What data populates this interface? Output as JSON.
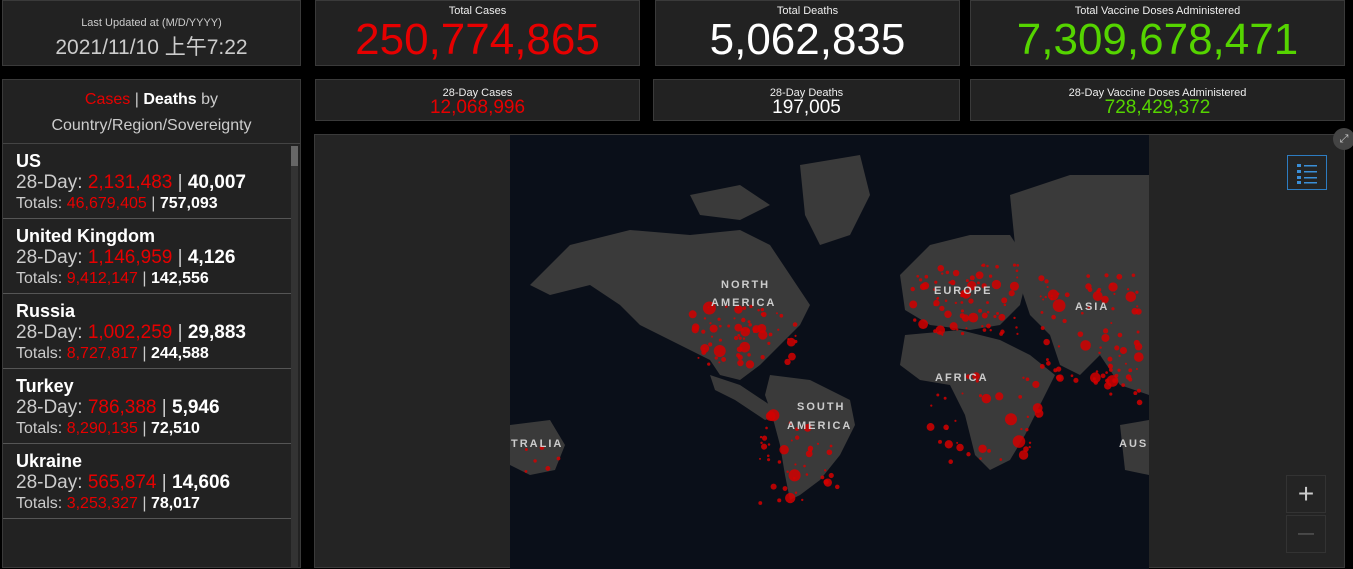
{
  "updated": {
    "label": "Last Updated at (M/D/YYYY)",
    "value": "2021/11/10 上午7:22"
  },
  "totals": [
    {
      "label": "Total Cases",
      "value": "250,774,865"
    },
    {
      "label": "Total Deaths",
      "value": "5,062,835"
    },
    {
      "label": "Total Vaccine Doses Administered",
      "value": "7,309,678,471"
    }
  ],
  "day28": [
    {
      "label": "28-Day Cases",
      "value": "12,068,996"
    },
    {
      "label": "28-Day Deaths",
      "value": "197,005"
    },
    {
      "label": "28-Day Vaccine Doses Administered",
      "value": "728,429,372"
    }
  ],
  "list": {
    "title_cases": "Cases",
    "sep": "|",
    "title_deaths": "Deaths",
    "title_by": "by",
    "subtitle": "Country/Region/Sovereignty",
    "day_label": "28-Day:",
    "totals_label": "Totals:",
    "items": [
      {
        "name": "US",
        "c28": "2,131,483",
        "d28": "40,007",
        "ct": "46,679,405",
        "dt": "757,093"
      },
      {
        "name": "United Kingdom",
        "c28": "1,146,959",
        "d28": "4,126",
        "ct": "9,412,147",
        "dt": "142,556"
      },
      {
        "name": "Russia",
        "c28": "1,002,259",
        "d28": "29,883",
        "ct": "8,727,817",
        "dt": "244,588"
      },
      {
        "name": "Turkey",
        "c28": "786,388",
        "d28": "5,946",
        "ct": "8,290,135",
        "dt": "72,510"
      },
      {
        "name": "Ukraine",
        "c28": "565,874",
        "d28": "14,606",
        "ct": "3,253,327",
        "dt": "78,017"
      }
    ]
  },
  "map": {
    "labels": {
      "na1": "NORTH",
      "na2": "AMERICA",
      "eu": "EUROPE",
      "as": "ASIA",
      "af": "AFRICA",
      "sa1": "SOUTH",
      "sa2": "AMERICA",
      "au1": "TRALIA",
      "au2": "AUS"
    },
    "zoom_in": "+",
    "zoom_out": "—",
    "icons": [
      "legend-list-icon",
      "expand-icon"
    ]
  },
  "colors": {
    "cases": "#e60000",
    "deaths": "#ffffff",
    "vaccine": "#55d400",
    "background": "#000000",
    "panel": "#222222"
  }
}
